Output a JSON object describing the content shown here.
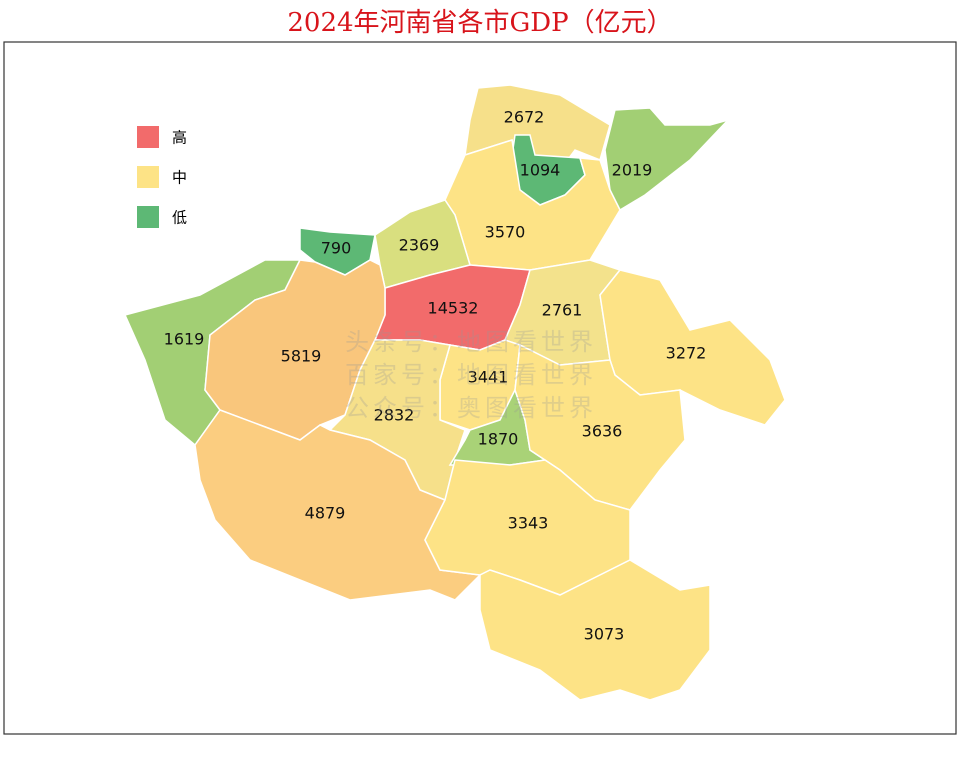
{
  "title": "2024年河南省各市GDP（亿元）",
  "legend": [
    {
      "label": "高",
      "color": "#f26b6b"
    },
    {
      "label": "中",
      "color": "#fde386"
    },
    {
      "label": "低",
      "color": "#5db875"
    }
  ],
  "watermarks": [
    "头条号：地图看世界",
    "百家号：地图看世界",
    "公众号：奥图看世界"
  ],
  "regions": [
    {
      "value": 2672,
      "color": "#f6e08a"
    },
    {
      "value": 1094,
      "color": "#5db875"
    },
    {
      "value": 2019,
      "color": "#a2cf74"
    },
    {
      "value": 3570,
      "color": "#fde386"
    },
    {
      "value": 790,
      "color": "#5db875"
    },
    {
      "value": 2369,
      "color": "#d9df7f"
    },
    {
      "value": 14532,
      "color": "#f26b6b"
    },
    {
      "value": 2761,
      "color": "#f3e28c"
    },
    {
      "value": 3272,
      "color": "#fde386"
    },
    {
      "value": 1619,
      "color": "#a2cf74"
    },
    {
      "value": 5819,
      "color": "#f9c67c"
    },
    {
      "value": 3441,
      "color": "#fde386"
    },
    {
      "value": 2832,
      "color": "#f6e08a"
    },
    {
      "value": 1870,
      "color": "#a9d277"
    },
    {
      "value": 3636,
      "color": "#fde386"
    },
    {
      "value": 4879,
      "color": "#fbcd80"
    },
    {
      "value": 3343,
      "color": "#fde386"
    },
    {
      "value": 3073,
      "color": "#fde386"
    }
  ]
}
